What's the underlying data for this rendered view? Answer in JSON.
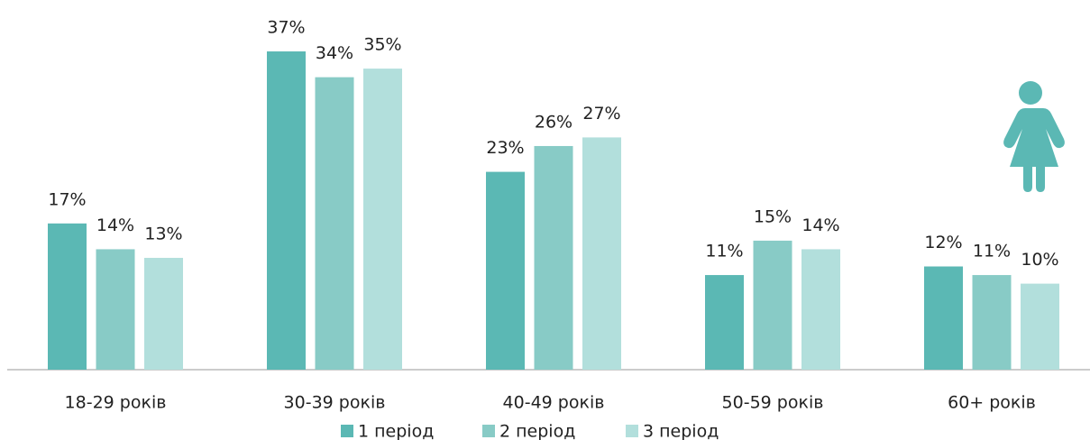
{
  "chart_data": {
    "type": "bar",
    "categories": [
      "18-29 років",
      "30-39 років",
      "40-49 років",
      "50-59 років",
      "60+ років"
    ],
    "series": [
      {
        "name": "1 період",
        "color": "#5bb8b4",
        "values": [
          17,
          37,
          23,
          11,
          12
        ],
        "value_labels": [
          "17%",
          "37%",
          "23%",
          "11%",
          "12%"
        ]
      },
      {
        "name": "2 період",
        "color": "#88cbc6",
        "values": [
          14,
          34,
          26,
          15,
          11
        ],
        "value_labels": [
          "14%",
          "34%",
          "26%",
          "15%",
          "11%"
        ]
      },
      {
        "name": "3 період",
        "color": "#b2dfdc",
        "values": [
          13,
          35,
          27,
          14,
          10
        ],
        "value_labels": [
          "13%",
          "35%",
          "27%",
          "14%",
          "10%"
        ]
      }
    ]
  }
}
